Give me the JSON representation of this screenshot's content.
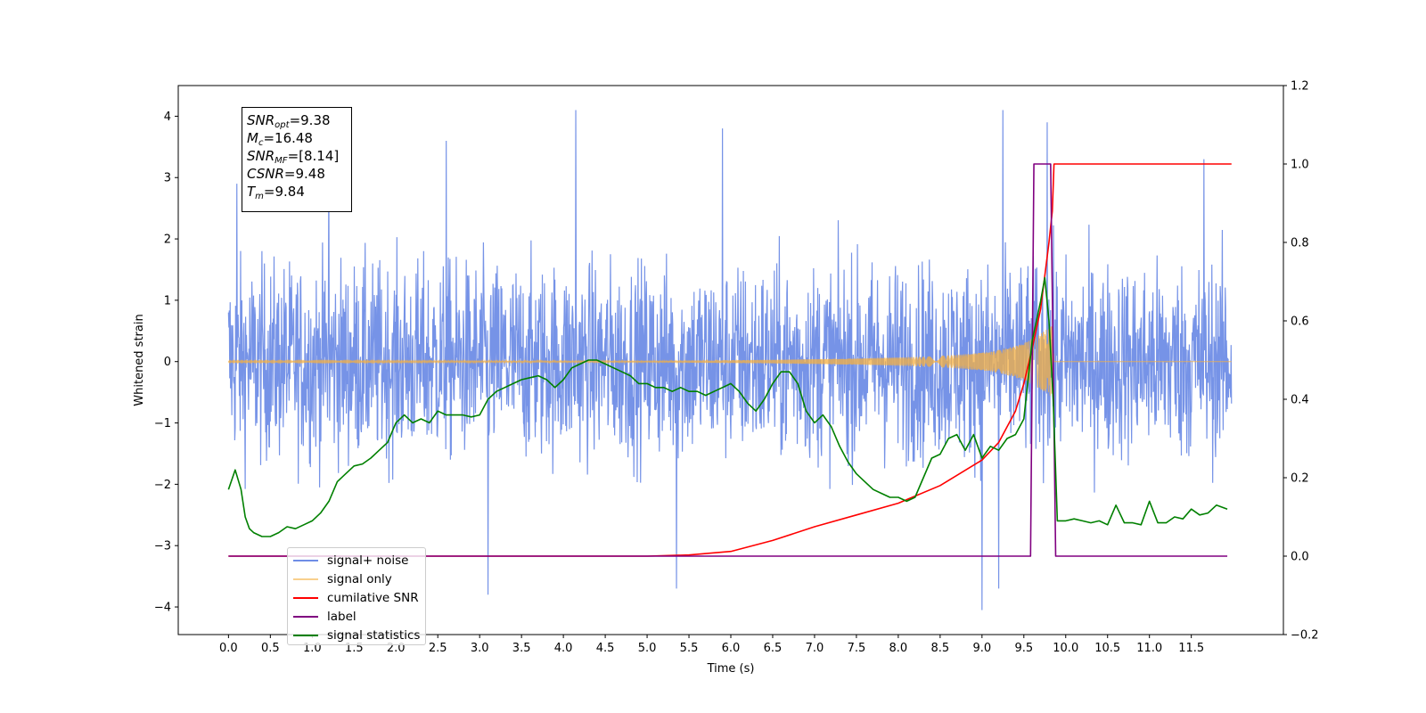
{
  "chart_data": {
    "type": "line",
    "xlabel": "Time (s)",
    "ylabel": "Whitened strain",
    "xlim": [
      -0.6,
      12.6
    ],
    "ylim": [
      -4.45,
      4.5
    ],
    "y2lim": [
      -0.2,
      1.2
    ],
    "x_ticks": [
      0.0,
      0.5,
      1.0,
      1.5,
      2.0,
      2.5,
      3.0,
      3.5,
      4.0,
      4.5,
      5.0,
      5.5,
      6.0,
      6.5,
      7.0,
      7.5,
      8.0,
      8.5,
      9.0,
      9.5,
      10.0,
      10.5,
      11.0,
      11.5
    ],
    "x_tick_labels": [
      "0.0",
      "0.5",
      "1.0",
      "1.5",
      "2.0",
      "2.5",
      "3.0",
      "3.5",
      "4.0",
      "4.5",
      "5.0",
      "5.5",
      "6.0",
      "6.5",
      "7.0",
      "7.5",
      "8.0",
      "8.5",
      "9.0",
      "9.5",
      "10.0",
      "10.5",
      "11.0",
      "11.5"
    ],
    "y_ticks": [
      -4,
      -3,
      -2,
      -1,
      0,
      1,
      2,
      3,
      4
    ],
    "y_tick_labels": [
      "−4",
      "−3",
      "−2",
      "−1",
      "0",
      "1",
      "2",
      "3",
      "4"
    ],
    "y2_ticks": [
      -0.2,
      0.0,
      0.2,
      0.4,
      0.6,
      0.8,
      1.0,
      1.2
    ],
    "y2_tick_labels": [
      "−0.2",
      "0.0",
      "0.2",
      "0.4",
      "0.6",
      "0.8",
      "1.0",
      "1.2"
    ],
    "grid": false,
    "legend_position": "lower-left",
    "series": [
      {
        "name": "signal+ noise",
        "color": "#6f8de6",
        "axis": "left",
        "x_start": 0.0,
        "x_end": 11.98,
        "typical_range": [
          -2.0,
          2.2
        ],
        "extreme_points": [
          [
            0.1,
            2.9
          ],
          [
            1.2,
            3.2
          ],
          [
            2.6,
            3.6
          ],
          [
            4.15,
            4.1
          ],
          [
            5.9,
            3.8
          ],
          [
            9.25,
            4.1
          ],
          [
            9.78,
            3.9
          ],
          [
            11.65,
            3.3
          ],
          [
            9.0,
            -4.05
          ],
          [
            3.1,
            -3.8
          ],
          [
            5.35,
            -3.7
          ],
          [
            9.2,
            -3.7
          ]
        ]
      },
      {
        "name": "signal only",
        "color": "#f5b041",
        "axis": "left",
        "x": [
          0.0,
          5.0,
          6.5,
          7.5,
          8.3,
          8.8,
          9.1,
          9.3,
          9.5,
          9.6,
          9.7,
          9.8,
          9.84,
          9.86,
          11.98
        ],
        "envelope": [
          0.01,
          0.01,
          0.03,
          0.05,
          0.08,
          0.12,
          0.16,
          0.22,
          0.3,
          0.38,
          0.45,
          0.55,
          0.6,
          0.0,
          0.0
        ]
      },
      {
        "name": "cumilative SNR",
        "color": "#ff0000",
        "axis": "right",
        "x": [
          0.0,
          5.0,
          5.5,
          6.0,
          6.5,
          7.0,
          7.5,
          8.0,
          8.5,
          9.0,
          9.2,
          9.4,
          9.5,
          9.6,
          9.7,
          9.8,
          9.84,
          9.86,
          11.98
        ],
        "values": [
          0.0,
          0.0,
          0.003,
          0.012,
          0.04,
          0.075,
          0.105,
          0.135,
          0.18,
          0.245,
          0.29,
          0.37,
          0.44,
          0.53,
          0.63,
          0.8,
          0.88,
          1.0,
          1.0
        ]
      },
      {
        "name": "label",
        "color": "#800080",
        "axis": "right",
        "x": [
          0.0,
          9.58,
          9.62,
          9.82,
          9.88,
          11.93
        ],
        "values": [
          0.0,
          0.0,
          1.0,
          1.0,
          0.0,
          0.0
        ]
      },
      {
        "name": "signal statistics",
        "color": "#008000",
        "axis": "right",
        "x": [
          0.0,
          0.08,
          0.15,
          0.2,
          0.25,
          0.3,
          0.4,
          0.5,
          0.6,
          0.7,
          0.8,
          0.9,
          1.0,
          1.1,
          1.2,
          1.3,
          1.4,
          1.5,
          1.6,
          1.7,
          1.8,
          1.9,
          2.0,
          2.1,
          2.2,
          2.3,
          2.4,
          2.5,
          2.6,
          2.7,
          2.8,
          2.9,
          3.0,
          3.1,
          3.2,
          3.3,
          3.4,
          3.5,
          3.6,
          3.7,
          3.8,
          3.9,
          4.0,
          4.1,
          4.2,
          4.3,
          4.4,
          4.5,
          4.6,
          4.7,
          4.8,
          4.9,
          5.0,
          5.1,
          5.2,
          5.3,
          5.4,
          5.5,
          5.6,
          5.7,
          5.8,
          5.9,
          6.0,
          6.1,
          6.2,
          6.3,
          6.4,
          6.5,
          6.6,
          6.7,
          6.8,
          6.9,
          7.0,
          7.1,
          7.2,
          7.3,
          7.4,
          7.5,
          7.6,
          7.7,
          7.8,
          7.9,
          8.0,
          8.1,
          8.2,
          8.3,
          8.4,
          8.5,
          8.6,
          8.7,
          8.8,
          8.9,
          9.0,
          9.1,
          9.2,
          9.3,
          9.4,
          9.5,
          9.6,
          9.7,
          9.75,
          9.8,
          9.85,
          9.9,
          10.0,
          10.1,
          10.2,
          10.3,
          10.4,
          10.5,
          10.6,
          10.7,
          10.8,
          10.9,
          11.0,
          11.1,
          11.2,
          11.3,
          11.4,
          11.5,
          11.6,
          11.7,
          11.8,
          11.93
        ],
        "values": [
          0.17,
          0.22,
          0.17,
          0.1,
          0.07,
          0.06,
          0.05,
          0.05,
          0.06,
          0.075,
          0.07,
          0.08,
          0.09,
          0.11,
          0.14,
          0.19,
          0.21,
          0.23,
          0.235,
          0.25,
          0.27,
          0.29,
          0.34,
          0.36,
          0.34,
          0.35,
          0.34,
          0.37,
          0.36,
          0.36,
          0.36,
          0.355,
          0.36,
          0.4,
          0.42,
          0.43,
          0.44,
          0.45,
          0.455,
          0.46,
          0.45,
          0.43,
          0.45,
          0.48,
          0.49,
          0.5,
          0.5,
          0.49,
          0.48,
          0.47,
          0.46,
          0.44,
          0.44,
          0.43,
          0.43,
          0.42,
          0.43,
          0.42,
          0.42,
          0.41,
          0.42,
          0.43,
          0.44,
          0.42,
          0.39,
          0.37,
          0.4,
          0.44,
          0.47,
          0.47,
          0.44,
          0.37,
          0.34,
          0.36,
          0.33,
          0.28,
          0.24,
          0.21,
          0.19,
          0.17,
          0.16,
          0.15,
          0.15,
          0.14,
          0.15,
          0.2,
          0.25,
          0.26,
          0.3,
          0.31,
          0.27,
          0.31,
          0.25,
          0.28,
          0.27,
          0.3,
          0.31,
          0.35,
          0.55,
          0.65,
          0.71,
          0.6,
          0.4,
          0.09,
          0.09,
          0.095,
          0.09,
          0.085,
          0.09,
          0.08,
          0.13,
          0.085,
          0.085,
          0.08,
          0.14,
          0.085,
          0.085,
          0.1,
          0.095,
          0.12,
          0.105,
          0.11,
          0.13,
          0.12
        ]
      }
    ]
  },
  "info_box": {
    "snr_opt_base": "SNR",
    "snr_opt_sub": "opt",
    "snr_opt_value": "=9.38",
    "mc_base": "M",
    "mc_sub": "c",
    "mc_value": "=16.48",
    "snr_mf_base": "SNR",
    "snr_mf_sub": "MF",
    "snr_mf_value": "=[8.14]",
    "csnr_base": "CSNR",
    "csnr_value": "=9.48",
    "tm_base": "T",
    "tm_sub": "m",
    "tm_value": "=9.84"
  }
}
